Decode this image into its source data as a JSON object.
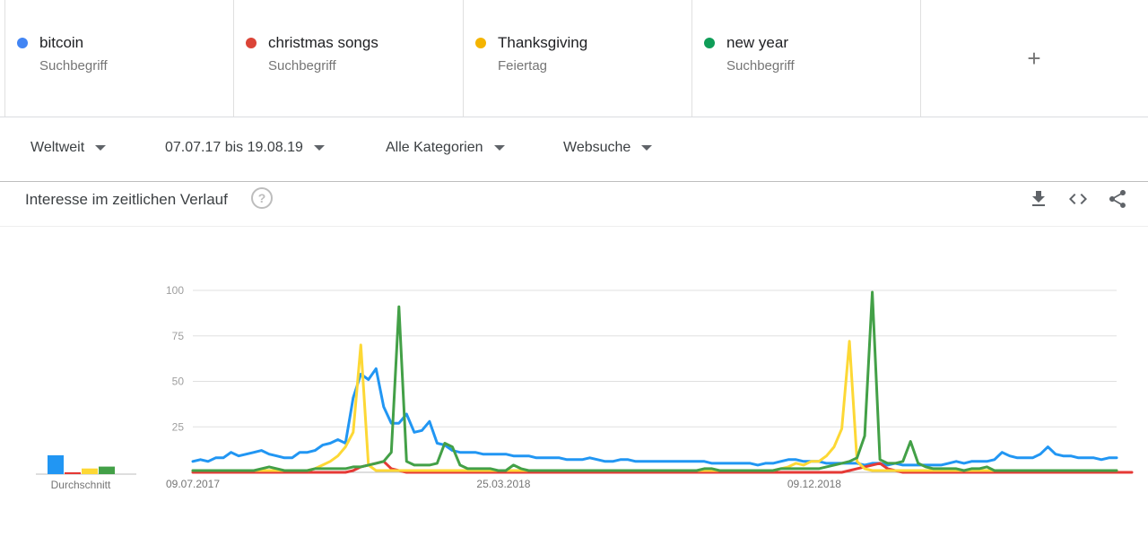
{
  "terms": [
    {
      "name": "bitcoin",
      "type": "Suchbegriff",
      "color": "#4285f4"
    },
    {
      "name": "christmas songs",
      "type": "Suchbegriff",
      "color": "#db4437"
    },
    {
      "name": "Thanksgiving",
      "type": "Feiertag",
      "color": "#f4b400"
    },
    {
      "name": "new year",
      "type": "Suchbegriff",
      "color": "#0f9d58"
    }
  ],
  "add_term_label": "+",
  "filters": {
    "region": "Weltweit",
    "date_range": "07.07.17 bis 19.08.19",
    "category": "Alle Kategorien",
    "search_type": "Websuche"
  },
  "card": {
    "title": "Interesse im zeitlichen Verlauf",
    "help_label": "?",
    "icons": [
      "download-icon",
      "embed-icon",
      "share-icon"
    ]
  },
  "chart_data": {
    "type": "line",
    "ylim": [
      0,
      100
    ],
    "yticks": [
      25,
      50,
      75,
      100
    ],
    "grid": true,
    "x_start": "09.07.2017",
    "x_end": "18.08.2019",
    "x_tick_labels": [
      "09.07.2017",
      "25.03.2018",
      "09.12.2018"
    ],
    "average_label": "Durchschnitt",
    "averages": [
      {
        "name": "bitcoin",
        "value": 10
      },
      {
        "name": "christmas songs",
        "value": 1
      },
      {
        "name": "Thanksgiving",
        "value": 3
      },
      {
        "name": "new year",
        "value": 4
      }
    ],
    "series": [
      {
        "name": "bitcoin",
        "color": "#2196f3",
        "values": [
          6,
          7,
          6,
          8,
          8,
          11,
          9,
          10,
          11,
          12,
          10,
          9,
          8,
          8,
          11,
          11,
          12,
          15,
          16,
          18,
          16,
          41,
          54,
          51,
          57,
          36,
          27,
          27,
          32,
          22,
          23,
          28,
          16,
          15,
          12,
          11,
          11,
          11,
          10,
          10,
          10,
          10,
          9,
          9,
          9,
          8,
          8,
          8,
          8,
          7,
          7,
          7,
          8,
          7,
          6,
          6,
          7,
          7,
          6,
          6,
          6,
          6,
          6,
          6,
          6,
          6,
          6,
          6,
          5,
          5,
          5,
          5,
          5,
          5,
          4,
          5,
          5,
          6,
          7,
          7,
          6,
          6,
          6,
          5,
          5,
          5,
          5,
          5,
          4,
          5,
          5,
          4,
          5,
          4,
          4,
          4,
          4,
          4,
          4,
          5,
          6,
          5,
          6,
          6,
          6,
          7,
          11,
          9,
          8,
          8,
          8,
          10,
          14,
          10,
          9,
          9,
          8,
          8,
          8,
          7,
          8,
          8
        ]
      },
      {
        "name": "christmas songs",
        "color": "#e53935",
        "values": [
          0,
          0,
          0,
          0,
          0,
          0,
          0,
          0,
          0,
          0,
          0,
          0,
          0,
          0,
          0,
          0,
          0,
          0,
          0,
          0,
          0,
          1,
          3,
          4,
          5,
          6,
          2,
          1,
          0,
          0,
          0,
          0,
          0,
          0,
          0,
          0,
          0,
          0,
          0,
          0,
          0,
          0,
          0,
          0,
          0,
          0,
          0,
          0,
          0,
          0,
          0,
          0,
          0,
          0,
          0,
          0,
          0,
          0,
          0,
          0,
          0,
          0,
          0,
          0,
          0,
          0,
          0,
          0,
          0,
          0,
          0,
          0,
          0,
          0,
          0,
          0,
          0,
          0,
          0,
          0,
          0,
          0,
          0,
          0,
          0,
          0,
          1,
          2,
          3,
          4,
          5,
          2,
          1,
          0,
          0,
          0,
          0,
          0,
          0,
          0,
          0,
          0,
          0,
          0,
          0,
          0,
          0,
          0,
          0,
          0,
          0,
          0,
          0,
          0,
          0,
          0,
          0,
          0,
          0,
          0,
          0,
          0,
          0,
          0
        ]
      },
      {
        "name": "Thanksgiving",
        "color": "#fdd835",
        "values": [
          1,
          1,
          1,
          1,
          1,
          1,
          1,
          1,
          1,
          1,
          1,
          1,
          1,
          1,
          1,
          1,
          2,
          4,
          6,
          9,
          14,
          22,
          70,
          4,
          1,
          1,
          1,
          1,
          1,
          1,
          1,
          1,
          1,
          1,
          1,
          1,
          1,
          1,
          1,
          1,
          1,
          1,
          1,
          1,
          1,
          1,
          1,
          1,
          1,
          1,
          1,
          1,
          1,
          1,
          1,
          1,
          1,
          1,
          1,
          1,
          1,
          1,
          1,
          1,
          1,
          1,
          1,
          1,
          1,
          1,
          1,
          1,
          1,
          1,
          1,
          1,
          1,
          2,
          3,
          5,
          4,
          6,
          6,
          9,
          14,
          24,
          72,
          6,
          2,
          1,
          1,
          1,
          1,
          1,
          1,
          1,
          1,
          1,
          1,
          1,
          1,
          1,
          1,
          1,
          1,
          1,
          1,
          1,
          1,
          1,
          1,
          1,
          1,
          1,
          1,
          1,
          1,
          1,
          1,
          1,
          1,
          1
        ]
      },
      {
        "name": "new year",
        "color": "#43a047",
        "values": [
          1,
          1,
          1,
          1,
          1,
          1,
          1,
          1,
          1,
          2,
          3,
          2,
          1,
          1,
          1,
          1,
          2,
          2,
          2,
          2,
          2,
          3,
          3,
          4,
          5,
          6,
          11,
          91,
          6,
          4,
          4,
          4,
          5,
          16,
          14,
          4,
          2,
          2,
          2,
          2,
          1,
          1,
          4,
          2,
          1,
          1,
          1,
          1,
          1,
          1,
          1,
          1,
          1,
          1,
          1,
          1,
          1,
          1,
          1,
          1,
          1,
          1,
          1,
          1,
          1,
          1,
          1,
          2,
          2,
          1,
          1,
          1,
          1,
          1,
          1,
          1,
          1,
          2,
          2,
          2,
          2,
          2,
          2,
          3,
          4,
          5,
          6,
          8,
          20,
          99,
          7,
          5,
          5,
          6,
          17,
          5,
          3,
          2,
          2,
          2,
          2,
          1,
          2,
          2,
          3,
          1,
          1,
          1,
          1,
          1,
          1,
          1,
          1,
          1,
          1,
          1,
          1,
          1,
          1,
          1,
          1,
          1
        ]
      }
    ]
  }
}
